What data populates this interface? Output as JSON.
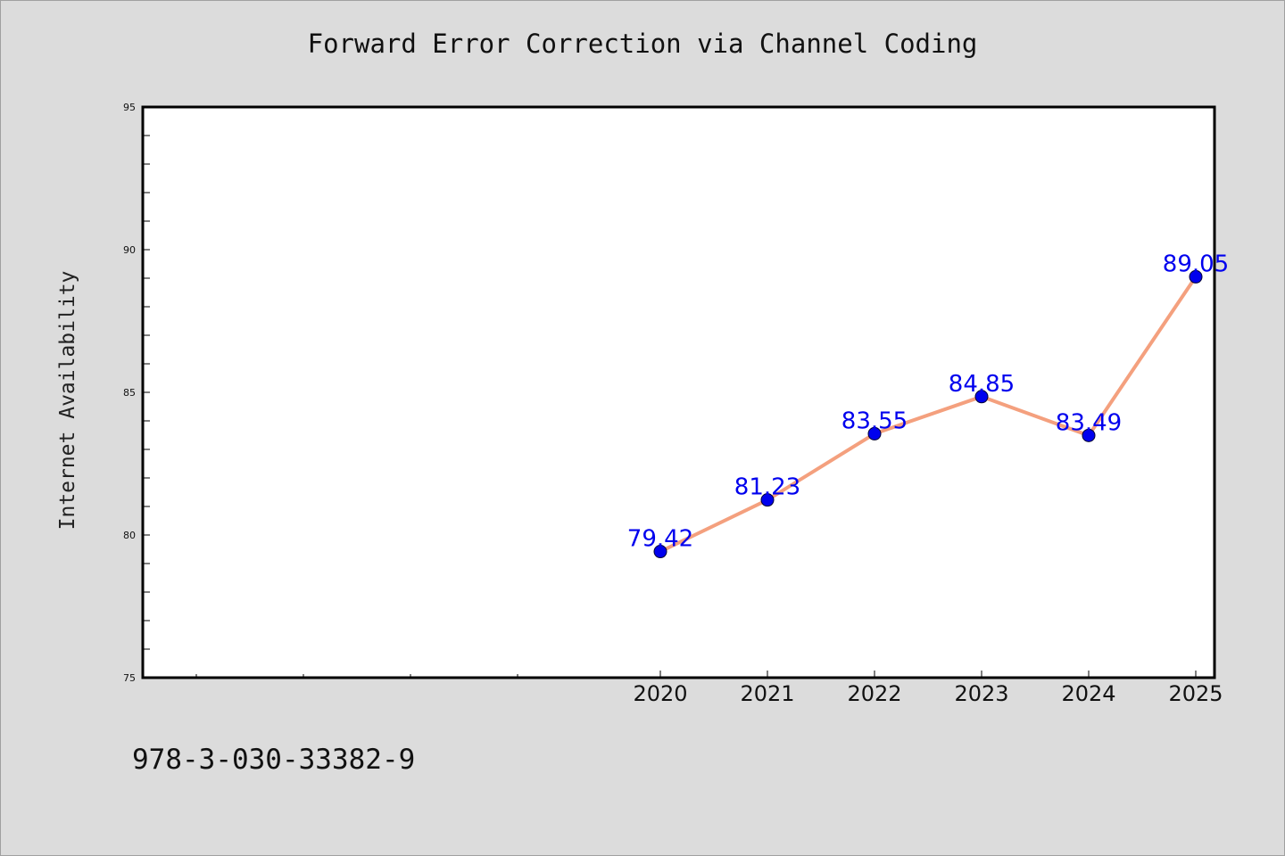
{
  "chart_data": {
    "type": "line",
    "title": "Forward Error Correction via Channel Coding",
    "xlabel": "",
    "ylabel": "Internet Availability",
    "categories": [
      "2020",
      "2021",
      "2022",
      "2023",
      "2024",
      "2025"
    ],
    "series": [
      {
        "values": [
          79.42,
          81.23,
          83.55,
          84.85,
          83.49,
          89.05
        ],
        "line_color": "#f4a07e",
        "marker_color": "#0000ee"
      }
    ],
    "data_labels": [
      "79.42",
      "81.23",
      "83.55",
      "84.85",
      "83.49",
      "89.05"
    ],
    "ylim": [
      75,
      95
    ],
    "yticks": [
      "75",
      "80",
      "85",
      "90",
      "95"
    ],
    "grid": false,
    "legend": "none"
  },
  "footer": {
    "code": "978-3-030-33382-9"
  },
  "colors": {
    "background": "#dcdcdc",
    "plot_background": "#ffffff",
    "line": "#f4a07e",
    "marker": "#0000ee",
    "label": "#0000ee"
  }
}
